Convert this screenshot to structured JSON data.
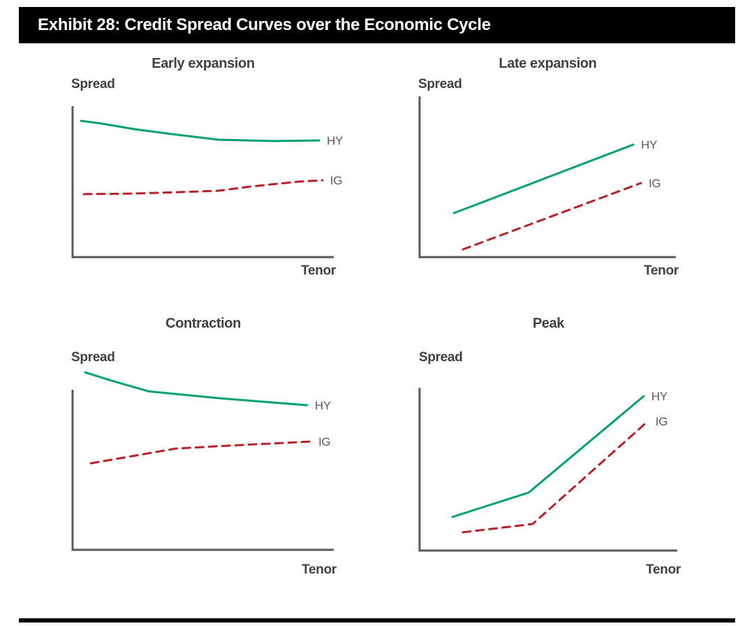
{
  "header": {
    "title": "Exhibit 28: Credit Spread Curves over the Economic Cycle"
  },
  "colors": {
    "hy_green": "#00A173",
    "ig_red": "#B92028",
    "axis_gray": "#58595B",
    "label_gray": "#58595B",
    "text_dark": "#414042",
    "bar_black": "#000000"
  },
  "chart_data": [
    {
      "type": "line",
      "title": "Early expansion",
      "xlabel": "Tenor",
      "ylabel": "Spread",
      "x_range": [
        0,
        1
      ],
      "y_units": "relative spread level (% of plot height, unlabeled conceptual axis)",
      "grid": false,
      "legend_position": "labels at right end of each line",
      "series": [
        {
          "name": "HY",
          "line": "solid",
          "color": "#00A173",
          "x": [
            0.032,
            0.096,
            0.163,
            0.238,
            0.382,
            0.559,
            0.773,
            0.944
          ],
          "y": [
            90.3,
            88.9,
            87.0,
            84.7,
            81.5,
            77.8,
            76.9,
            77.3
          ]
        },
        {
          "name": "IG",
          "line": "dashed",
          "color": "#B92028",
          "x": [
            0.043,
            0.23,
            0.417,
            0.559,
            0.684,
            0.864,
            0.957
          ],
          "y": [
            41.7,
            42.1,
            43.1,
            44.0,
            46.8,
            50.0,
            50.9
          ]
        }
      ]
    },
    {
      "type": "line",
      "title": "Late expansion",
      "xlabel": "Tenor",
      "ylabel": "Spread",
      "x_range": [
        0,
        1
      ],
      "y_units": "relative spread level (% of plot height, unlabeled conceptual axis)",
      "grid": false,
      "legend_position": "labels at right end of each line",
      "series": [
        {
          "name": "HY",
          "line": "solid",
          "color": "#00A173",
          "x": [
            0.134,
            0.834
          ],
          "y": [
            27.4,
            70.0
          ]
        },
        {
          "name": "IG",
          "line": "dashed",
          "color": "#B92028",
          "x": [
            0.169,
            0.864
          ],
          "y": [
            4.8,
            46.1
          ]
        }
      ]
    },
    {
      "type": "line",
      "title": "Contraction",
      "xlabel": "Tenor",
      "ylabel": "Spread",
      "x_range": [
        0,
        1
      ],
      "y_units": "relative spread level (% of plot height, unlabeled conceptual axis; HY starts above axis top)",
      "grid": false,
      "legend_position": "labels at right end of each line",
      "series": [
        {
          "name": "HY",
          "line": "solid",
          "color": "#00A173",
          "x": [
            0.048,
            0.15,
            0.291,
            0.559,
            0.898
          ],
          "y": [
            110.9,
            105.7,
            99.1,
            94.8,
            90.4
          ]
        },
        {
          "name": "IG",
          "line": "dashed",
          "color": "#B92028",
          "x": [
            0.07,
            0.396,
            0.596,
            0.912
          ],
          "y": [
            54.1,
            63.3,
            65.1,
            67.7
          ]
        }
      ]
    },
    {
      "type": "line",
      "title": "Peak",
      "xlabel": "Tenor",
      "ylabel": "Spread",
      "x_range": [
        0,
        1
      ],
      "y_units": "relative spread level (% of plot height, unlabeled conceptual axis)",
      "grid": false,
      "legend_position": "labels at right end of each line",
      "series": [
        {
          "name": "HY",
          "line": "solid",
          "color": "#00A173",
          "x": [
            0.127,
            0.423,
            0.87
          ],
          "y": [
            20.6,
            35.6,
            94.8
          ]
        },
        {
          "name": "IG",
          "line": "dashed",
          "color": "#B92028",
          "x": [
            0.168,
            0.439,
            0.886
          ],
          "y": [
            11.2,
            16.3,
            79.4
          ]
        }
      ]
    }
  ]
}
